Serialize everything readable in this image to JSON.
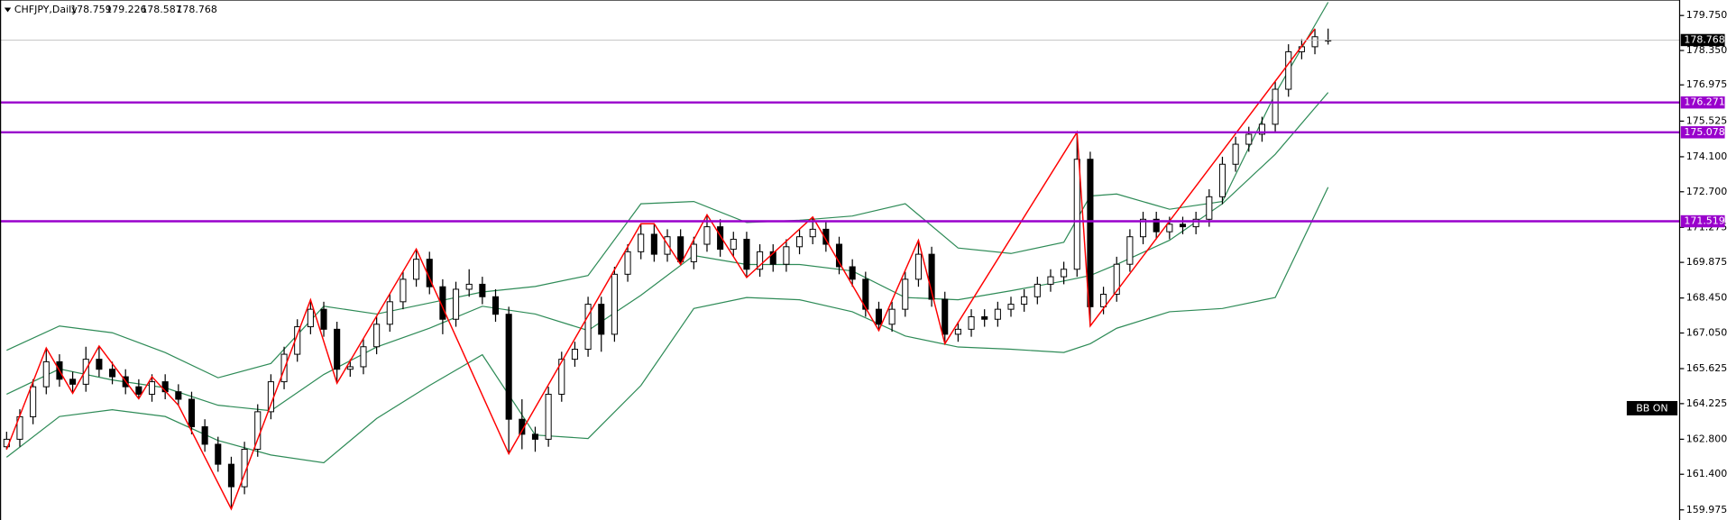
{
  "chart_data": {
    "type": "candlestick",
    "symbol": "CHFJPY,Daily",
    "indicator_label": "BB ON",
    "open": [
      162.5,
      162.8,
      163.7,
      164.9,
      165.9,
      165.2,
      165.0,
      166.0,
      165.6,
      165.3,
      164.9,
      164.6,
      165.1,
      164.7,
      164.4,
      163.3,
      162.6,
      161.8,
      160.9,
      162.4,
      163.9,
      165.1,
      166.2,
      167.3,
      168.0,
      167.2,
      165.6,
      165.7,
      166.5,
      167.4,
      168.3,
      169.2,
      170.0,
      168.9,
      167.6,
      168.8,
      169.0,
      168.5,
      167.8,
      163.6,
      163.0,
      162.8,
      164.6,
      166.0,
      166.4,
      168.2,
      167.0,
      169.4,
      170.3,
      171.0,
      170.2,
      170.9,
      169.9,
      170.6,
      171.3,
      170.4,
      170.8,
      169.6,
      170.3,
      169.8,
      170.5,
      170.9,
      171.2,
      170.6,
      169.7,
      169.2,
      168.0,
      167.4,
      168.0,
      169.2,
      170.2,
      168.4,
      167.0,
      167.2,
      167.7,
      167.6,
      168.0,
      168.2,
      168.5,
      169.0,
      169.3,
      169.6,
      174.0,
      168.1,
      168.6,
      169.8,
      170.9,
      171.6,
      171.1,
      171.4,
      171.3,
      171.6,
      172.5,
      173.8,
      174.6,
      175.0,
      175.4,
      176.8,
      178.3,
      178.5,
      178.759
    ],
    "high": [
      163.1,
      164.0,
      165.2,
      166.45,
      166.2,
      165.5,
      166.5,
      166.53,
      165.9,
      165.6,
      165.2,
      165.4,
      165.4,
      165.0,
      164.7,
      163.6,
      162.9,
      162.1,
      162.7,
      164.2,
      165.4,
      166.5,
      167.6,
      168.38,
      168.3,
      167.5,
      166.0,
      166.8,
      167.7,
      168.6,
      169.5,
      170.41,
      170.3,
      169.2,
      169.1,
      169.6,
      169.3,
      168.8,
      168.1,
      164.4,
      163.3,
      164.9,
      166.3,
      166.7,
      168.5,
      168.5,
      169.7,
      170.6,
      171.42,
      171.42,
      171.2,
      171.2,
      170.9,
      171.78,
      171.6,
      171.1,
      171.1,
      170.6,
      170.6,
      170.8,
      171.2,
      171.69,
      171.5,
      170.9,
      170.0,
      169.5,
      168.3,
      168.3,
      169.5,
      170.76,
      170.5,
      168.7,
      167.5,
      168.0,
      168.0,
      168.3,
      168.5,
      168.8,
      169.3,
      169.6,
      169.9,
      175.08,
      174.3,
      168.9,
      170.1,
      171.2,
      171.9,
      171.9,
      171.7,
      171.7,
      171.9,
      172.8,
      174.1,
      174.9,
      175.3,
      175.7,
      177.1,
      178.6,
      178.8,
      179.22,
      179.226
    ],
    "low": [
      162.39,
      162.5,
      163.4,
      164.6,
      164.9,
      164.64,
      164.7,
      165.3,
      165.0,
      164.6,
      164.42,
      164.3,
      164.4,
      164.16,
      163.0,
      162.3,
      161.5,
      160.01,
      160.6,
      162.1,
      163.6,
      164.8,
      165.9,
      167.0,
      166.9,
      165.04,
      165.3,
      165.4,
      166.2,
      167.1,
      168.0,
      168.9,
      168.6,
      167.0,
      167.3,
      168.5,
      168.2,
      167.5,
      162.22,
      162.4,
      162.3,
      162.5,
      164.3,
      165.7,
      166.1,
      166.3,
      166.7,
      169.1,
      170.0,
      169.9,
      169.9,
      169.79,
      169.6,
      170.3,
      170.1,
      170.1,
      169.27,
      169.3,
      169.5,
      169.5,
      170.2,
      170.6,
      170.3,
      169.4,
      168.9,
      167.7,
      167.15,
      167.1,
      167.7,
      168.9,
      168.1,
      166.62,
      166.7,
      166.9,
      167.3,
      167.3,
      167.7,
      167.9,
      168.2,
      168.7,
      169.0,
      169.3,
      167.33,
      167.8,
      168.3,
      169.5,
      170.6,
      170.8,
      170.8,
      171.0,
      171.0,
      171.3,
      172.2,
      173.5,
      174.3,
      174.7,
      175.1,
      176.5,
      178.0,
      178.2,
      178.587
    ],
    "close": [
      162.8,
      163.7,
      164.9,
      165.9,
      165.2,
      165.0,
      166.0,
      165.6,
      165.3,
      164.9,
      164.6,
      165.1,
      164.7,
      164.4,
      163.3,
      162.6,
      161.8,
      160.9,
      162.4,
      163.9,
      165.1,
      166.2,
      167.3,
      168.0,
      167.2,
      165.6,
      165.7,
      166.5,
      167.4,
      168.3,
      169.2,
      170.0,
      168.9,
      167.6,
      168.8,
      169.0,
      168.5,
      167.8,
      163.6,
      163.0,
      162.8,
      164.6,
      166.0,
      166.4,
      168.2,
      167.0,
      169.4,
      170.3,
      171.0,
      170.2,
      170.9,
      169.9,
      170.6,
      171.3,
      170.4,
      170.8,
      169.6,
      170.3,
      169.8,
      170.5,
      170.9,
      171.2,
      170.6,
      169.7,
      169.2,
      168.0,
      167.4,
      168.0,
      169.2,
      170.2,
      168.4,
      167.0,
      167.2,
      167.7,
      167.6,
      168.0,
      168.2,
      168.5,
      169.0,
      169.3,
      169.6,
      174.0,
      168.1,
      168.6,
      169.8,
      170.9,
      171.6,
      171.1,
      171.4,
      171.3,
      171.6,
      172.5,
      173.8,
      174.6,
      175.0,
      175.4,
      176.8,
      178.3,
      178.5,
      178.9,
      178.768
    ],
    "up_color": "#ffffff",
    "down_color": "#000000",
    "candle_outline": "#000000",
    "xlim": [
      -0.5,
      126.6
    ],
    "ylim": [
      159.57,
      180.37
    ],
    "yticks": [
      {
        "value": 179.75,
        "label": "179.750"
      },
      {
        "value": 178.35,
        "label": "178.350"
      },
      {
        "value": 176.975,
        "label": "176.975"
      },
      {
        "value": 175.525,
        "label": "175.525"
      },
      {
        "value": 174.1,
        "label": "174.100"
      },
      {
        "value": 172.7,
        "label": "172.700"
      },
      {
        "value": 171.275,
        "label": "171.275"
      },
      {
        "value": 169.875,
        "label": "169.875"
      },
      {
        "value": 168.45,
        "label": "168.450"
      },
      {
        "value": 167.05,
        "label": "167.050"
      },
      {
        "value": 165.625,
        "label": "165.625"
      },
      {
        "value": 164.225,
        "label": "164.225"
      },
      {
        "value": 162.8,
        "label": "162.800"
      },
      {
        "value": 161.4,
        "label": "161.400"
      },
      {
        "value": 159.975,
        "label": "159.975"
      }
    ],
    "bands": {
      "color": "#2e8b57",
      "x": [
        0,
        4,
        8,
        12,
        16,
        20,
        24,
        28,
        32,
        36,
        40,
        44,
        48,
        52,
        56,
        60,
        64,
        68,
        72,
        76,
        80,
        82,
        84,
        88,
        92,
        96,
        100
      ],
      "upper": [
        166.36,
        167.33,
        167.06,
        166.27,
        165.26,
        165.83,
        168.12,
        167.81,
        168.25,
        168.69,
        168.91,
        169.35,
        172.22,
        172.31,
        171.47,
        171.56,
        171.73,
        172.22,
        170.45,
        170.23,
        170.68,
        172.53,
        172.61,
        172.0,
        172.31,
        176.62,
        180.28
      ],
      "middle": [
        164.6,
        165.61,
        165.17,
        164.86,
        164.16,
        163.94,
        165.39,
        166.49,
        167.24,
        168.12,
        167.81,
        167.15,
        168.56,
        170.15,
        169.79,
        169.79,
        169.53,
        168.47,
        168.38,
        168.74,
        169.13,
        169.35,
        169.79,
        170.76,
        172.22,
        174.2,
        176.67
      ],
      "lower": [
        162.08,
        163.71,
        163.98,
        163.71,
        162.75,
        162.17,
        161.86,
        163.63,
        164.95,
        166.18,
        162.97,
        162.83,
        164.95,
        168.03,
        168.47,
        168.38,
        167.9,
        166.93,
        166.49,
        166.4,
        166.27,
        166.62,
        167.24,
        167.9,
        168.03,
        168.47,
        172.88
      ]
    },
    "zigzag": {
      "color": "#ff0000",
      "x": [
        0,
        3,
        5,
        7,
        10,
        11,
        13,
        17,
        23,
        25,
        31,
        38,
        48,
        49,
        51,
        53,
        56,
        61,
        66,
        69,
        71,
        81,
        82,
        99
      ],
      "values": [
        162.39,
        166.45,
        164.64,
        166.53,
        164.42,
        165.3,
        164.16,
        160.01,
        168.38,
        165.04,
        170.41,
        162.22,
        171.42,
        171.42,
        169.79,
        171.78,
        169.27,
        171.69,
        167.15,
        170.76,
        166.62,
        175.08,
        167.33,
        179.22
      ]
    },
    "levels": [
      {
        "value": 176.271,
        "color": "#9900cc"
      },
      {
        "value": 175.078,
        "color": "#9900cc"
      },
      {
        "value": 171.519,
        "color": "#9900cc"
      }
    ],
    "price_line_color": "#c0c0c0"
  }
}
